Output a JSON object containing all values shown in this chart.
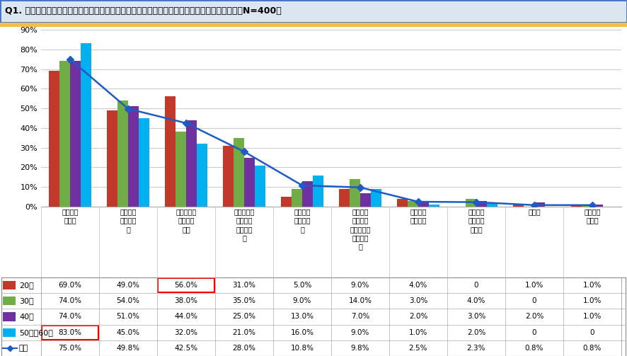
{
  "title": "Q1. あなたが現在ジョギングやランニングを続けている理由をお答えください。（複数回答）【N=400】",
  "categories": [
    "健康維持\nのため",
    "運動不足\n解消のた\nめ",
    "ダイエット\nや美容の\nため",
    "ストレス解\n消や気分\n転換のた\nめ",
    "散歩の代\nわりのた\nめ",
    "大会やラ\nンニング\nイベントの\n練習のた\nめ",
    "人と交流\nするため",
    "空いた時\n間を埋め\nるため",
    "その他",
    "特に理由\nはない"
  ],
  "series": {
    "20代": [
      69.0,
      49.0,
      56.0,
      31.0,
      5.0,
      9.0,
      4.0,
      0.0,
      1.0,
      1.0
    ],
    "30代": [
      74.0,
      54.0,
      38.0,
      35.0,
      9.0,
      14.0,
      3.0,
      4.0,
      0.0,
      1.0
    ],
    "40代": [
      74.0,
      51.0,
      44.0,
      25.0,
      13.0,
      7.0,
      2.0,
      3.0,
      2.0,
      1.0
    ],
    "50代・60代": [
      83.0,
      45.0,
      32.0,
      21.0,
      16.0,
      9.0,
      1.0,
      2.0,
      0.0,
      0.0
    ],
    "全体": [
      75.0,
      49.8,
      42.5,
      28.0,
      10.8,
      9.8,
      2.5,
      2.3,
      0.8,
      0.8
    ]
  },
  "bar_colors": {
    "20代": "#c0392b",
    "30代": "#70ad47",
    "40代": "#7030a0",
    "50代・60代": "#00b0f0"
  },
  "line_color": "#1f5bc4",
  "line_marker": "D",
  "ylim": [
    0,
    90
  ],
  "yticks": [
    0,
    10,
    20,
    30,
    40,
    50,
    60,
    70,
    80,
    90
  ],
  "table_rows": {
    "20代": [
      "69.0%",
      "49.0%",
      "56.0%",
      "31.0%",
      "5.0%",
      "9.0%",
      "4.0%",
      "0",
      "1.0%",
      "1.0%"
    ],
    "30代": [
      "74.0%",
      "54.0%",
      "38.0%",
      "35.0%",
      "9.0%",
      "14.0%",
      "3.0%",
      "4.0%",
      "0",
      "1.0%"
    ],
    "40代": [
      "74.0%",
      "51.0%",
      "44.0%",
      "25.0%",
      "13.0%",
      "7.0%",
      "2.0%",
      "3.0%",
      "2.0%",
      "1.0%"
    ],
    "50代・60代": [
      "83.0%",
      "45.0%",
      "32.0%",
      "21.0%",
      "16.0%",
      "9.0%",
      "1.0%",
      "2.0%",
      "0",
      "0"
    ],
    "全体": [
      "75.0%",
      "49.8%",
      "42.5%",
      "28.0%",
      "10.8%",
      "9.8%",
      "2.5%",
      "2.3%",
      "0.8%",
      "0.8%"
    ]
  },
  "background_color": "#ffffff",
  "grid_color": "#cccccc",
  "title_bg_color": "#dce6f1",
  "title_border_color": "#4472c4",
  "title_bottom_color": "#f0c040"
}
